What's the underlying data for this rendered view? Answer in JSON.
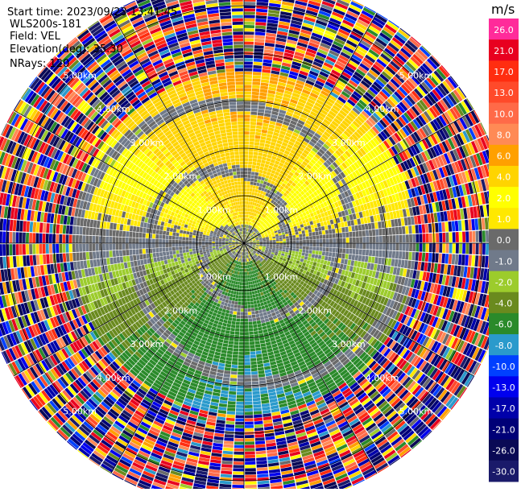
{
  "header": {
    "start_time": "Start time: 2023/09/23 13:41:45",
    "instrument": "WLS200s-181",
    "field": "Field: VEL",
    "elevation": "Elevation(deg): 35.30",
    "nrays": "NRays: 120"
  },
  "colorbar": {
    "unit": "m/s",
    "levels": [
      {
        "value": 26.0,
        "label": "26.0",
        "color": "#ff2b9a"
      },
      {
        "value": 21.0,
        "label": "21.0",
        "color": "#e8001f"
      },
      {
        "value": 17.0,
        "label": "17.0",
        "color": "#ff2d10"
      },
      {
        "value": 13.0,
        "label": "13.0",
        "color": "#ff4a2a"
      },
      {
        "value": 10.0,
        "label": "10.0",
        "color": "#ff6a48"
      },
      {
        "value": 8.0,
        "label": "8.0",
        "color": "#ff8a55"
      },
      {
        "value": 6.0,
        "label": "6.0",
        "color": "#ffa000"
      },
      {
        "value": 4.0,
        "label": "4.0",
        "color": "#ffd400"
      },
      {
        "value": 2.0,
        "label": "2.0",
        "color": "#ffff00"
      },
      {
        "value": 1.0,
        "label": "1.0",
        "color": "#ffe800"
      },
      {
        "value": 0.0,
        "label": "0.0",
        "color": "#6a6a6a"
      },
      {
        "value": -1.0,
        "label": "-1.0",
        "color": "#707a8a"
      },
      {
        "value": -2.0,
        "label": "-2.0",
        "color": "#9ccc2c"
      },
      {
        "value": -4.0,
        "label": "-4.0",
        "color": "#6a8a1e"
      },
      {
        "value": -6.0,
        "label": "-6.0",
        "color": "#2a8a2a"
      },
      {
        "value": -8.0,
        "label": "-8.0",
        "color": "#2a9acc"
      },
      {
        "value": -10.0,
        "label": "-10.0",
        "color": "#0040ff"
      },
      {
        "value": -13.0,
        "label": "-13.0",
        "color": "#0000ee"
      },
      {
        "value": -17.0,
        "label": "-17.0",
        "color": "#0000aa"
      },
      {
        "value": -21.0,
        "label": "-21.0",
        "color": "#000077"
      },
      {
        "value": -26.0,
        "label": "-26.0",
        "color": "#0a0a55"
      },
      {
        "value": -30.0,
        "label": "-30.0",
        "color": "#1a1a6a"
      }
    ]
  },
  "range_rings": {
    "labels": [
      "1.00km",
      "2.00km",
      "3.00km",
      "4.00km",
      "5.00km"
    ]
  },
  "chart_data": {
    "type": "heatmap",
    "subtype": "PPI radial velocity (polar)",
    "field": "VEL",
    "units": "m/s",
    "nrays": 120,
    "elevation_deg": 35.3,
    "range_rings_km": [
      1,
      2,
      3,
      4,
      5
    ],
    "max_range_km": 5.6,
    "spokes_deg": [
      0,
      30,
      60,
      90,
      120,
      150,
      180,
      210,
      240,
      270,
      300,
      330
    ],
    "value_range": [
      -30,
      26
    ],
    "description_of_pattern": [
      {
        "region": "north half, 0.6-3.5 km",
        "velocity_mps": [
          1,
          6
        ]
      },
      {
        "region": "south half, 0.6-3.5 km",
        "velocity_mps": [
          -6,
          -1
        ]
      },
      {
        "region": "near-zero spiral band",
        "velocity_mps": [
          -1,
          1
        ]
      },
      {
        "region": "beyond ~3.6 km (noise)",
        "velocity_mps": [
          -30,
          26
        ]
      }
    ]
  }
}
